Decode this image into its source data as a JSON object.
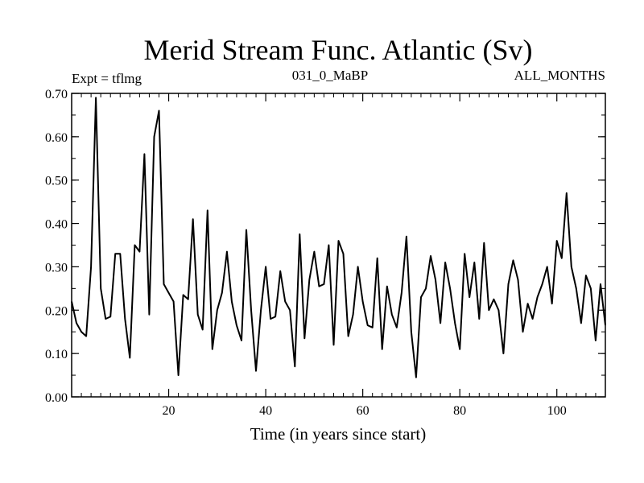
{
  "chart_data": {
    "type": "line",
    "title": "Merid Stream Func. Atlantic (Sv)",
    "subtitle_left": "Expt = tflmg",
    "subtitle_center": "031_0_MaBP",
    "subtitle_right": "ALL_MONTHS",
    "xlabel": "Time (in years since start)",
    "ylabel": "",
    "xlim": [
      0,
      110
    ],
    "ylim": [
      0.0,
      0.7
    ],
    "xticks": [
      20,
      40,
      60,
      80,
      100
    ],
    "xtick_labels": [
      "20",
      "40",
      "60",
      "80",
      "100"
    ],
    "yticks": [
      0.0,
      0.1,
      0.2,
      0.3,
      0.4,
      0.5,
      0.6,
      0.7
    ],
    "ytick_labels": [
      "0.00",
      "0.10",
      "0.20",
      "0.30",
      "0.40",
      "0.50",
      "0.60",
      "0.70"
    ],
    "grid": false,
    "line_color": "#000000",
    "series": [
      {
        "name": "Merid Stream Func. Atlantic",
        "x": [
          0,
          1,
          2,
          3,
          4,
          5,
          6,
          7,
          8,
          9,
          10,
          11,
          12,
          13,
          14,
          15,
          16,
          17,
          18,
          19,
          20,
          21,
          22,
          23,
          24,
          25,
          26,
          27,
          28,
          29,
          30,
          31,
          32,
          33,
          34,
          35,
          36,
          37,
          38,
          39,
          40,
          41,
          42,
          43,
          44,
          45,
          46,
          47,
          48,
          49,
          50,
          51,
          52,
          53,
          54,
          55,
          56,
          57,
          58,
          59,
          60,
          61,
          62,
          63,
          64,
          65,
          66,
          67,
          68,
          69,
          70,
          71,
          72,
          73,
          74,
          75,
          76,
          77,
          78,
          79,
          80,
          81,
          82,
          83,
          84,
          85,
          86,
          87,
          88,
          89,
          90,
          91,
          92,
          93,
          94,
          95,
          96,
          97,
          98,
          99,
          100,
          101,
          102,
          103,
          104,
          105,
          106,
          107,
          108,
          109,
          110
        ],
        "values": [
          0.22,
          0.17,
          0.15,
          0.14,
          0.3,
          0.69,
          0.25,
          0.18,
          0.185,
          0.33,
          0.33,
          0.18,
          0.09,
          0.35,
          0.335,
          0.56,
          0.19,
          0.6,
          0.66,
          0.26,
          0.24,
          0.22,
          0.05,
          0.235,
          0.225,
          0.41,
          0.19,
          0.155,
          0.43,
          0.11,
          0.2,
          0.24,
          0.335,
          0.22,
          0.165,
          0.13,
          0.385,
          0.2,
          0.06,
          0.2,
          0.3,
          0.18,
          0.185,
          0.29,
          0.22,
          0.2,
          0.07,
          0.375,
          0.135,
          0.27,
          0.335,
          0.255,
          0.26,
          0.35,
          0.12,
          0.36,
          0.33,
          0.14,
          0.19,
          0.3,
          0.22,
          0.165,
          0.16,
          0.32,
          0.11,
          0.255,
          0.19,
          0.16,
          0.24,
          0.37,
          0.15,
          0.045,
          0.23,
          0.25,
          0.325,
          0.27,
          0.17,
          0.31,
          0.25,
          0.17,
          0.11,
          0.33,
          0.23,
          0.31,
          0.18,
          0.355,
          0.2,
          0.225,
          0.2,
          0.1,
          0.26,
          0.315,
          0.27,
          0.15,
          0.215,
          0.18,
          0.23,
          0.26,
          0.3,
          0.215,
          0.36,
          0.32,
          0.47,
          0.3,
          0.25,
          0.17,
          0.28,
          0.25,
          0.13,
          0.26,
          0.165
        ]
      }
    ]
  }
}
